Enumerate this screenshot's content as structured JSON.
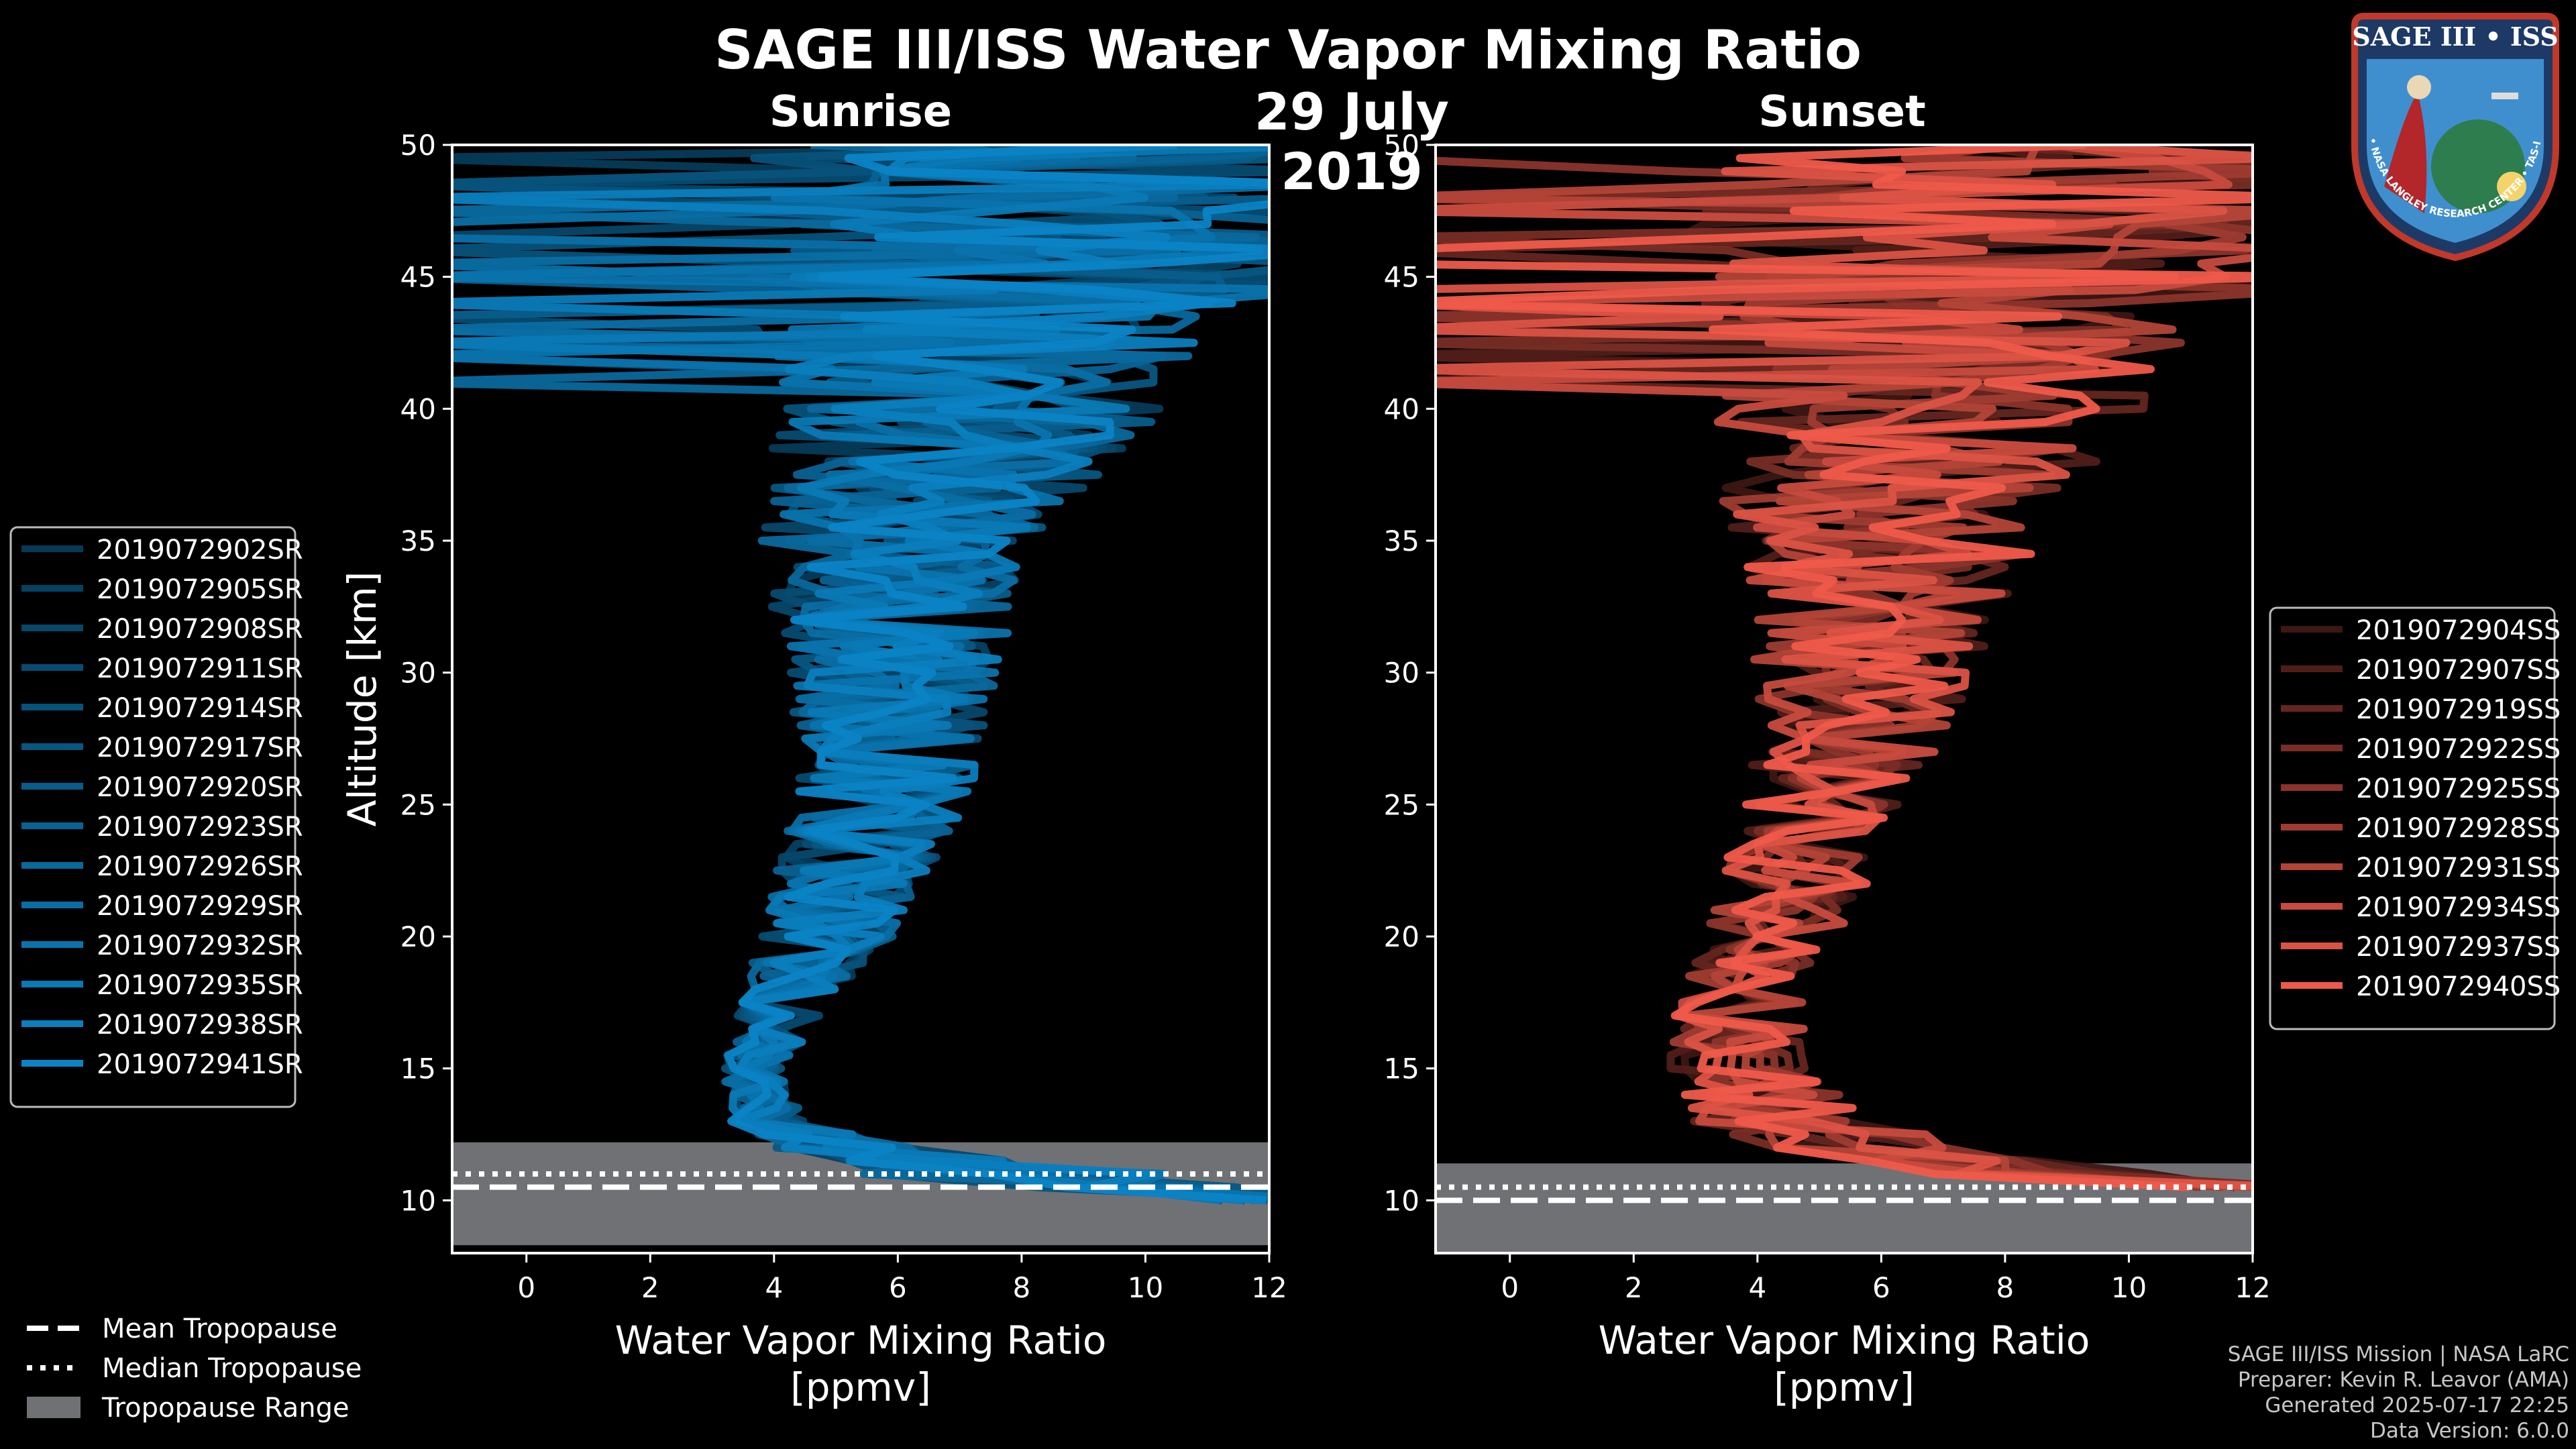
{
  "title": "SAGE III/ISS Water Vapor Mixing Ratio",
  "date": "29 July 2019",
  "colors": {
    "background": "#000000",
    "sunrise": "#0b84c6",
    "sunset": "#ef5a4a",
    "tropopause_fill": "#6f7175"
  },
  "chart_data": [
    {
      "type": "line",
      "panel": "Sunrise",
      "title": "Sunrise",
      "xlabel": "Water Vapor Mixing Ratio\n[ppmv]",
      "ylabel": "Altitude [km]",
      "xlim": [
        -1.2,
        12
      ],
      "ylim": [
        8,
        50
      ],
      "xticks": [
        0,
        2,
        4,
        6,
        8,
        10,
        12
      ],
      "yticks": [
        10,
        15,
        20,
        25,
        30,
        35,
        40,
        45,
        50
      ],
      "legend_location": "left",
      "series": [
        {
          "name": "2019072902SR"
        },
        {
          "name": "2019072905SR"
        },
        {
          "name": "2019072908SR"
        },
        {
          "name": "2019072911SR"
        },
        {
          "name": "2019072914SR"
        },
        {
          "name": "2019072917SR"
        },
        {
          "name": "2019072920SR"
        },
        {
          "name": "2019072923SR"
        },
        {
          "name": "2019072926SR"
        },
        {
          "name": "2019072929SR"
        },
        {
          "name": "2019072932SR"
        },
        {
          "name": "2019072935SR"
        },
        {
          "name": "2019072938SR"
        },
        {
          "name": "2019072941SR"
        }
      ],
      "profile_shape": {
        "altitude": [
          10,
          11,
          12,
          13,
          15,
          18,
          20,
          25,
          30,
          35,
          40,
          45,
          50
        ],
        "median": [
          12,
          7.5,
          5,
          3.8,
          3.6,
          4.2,
          4.7,
          5.5,
          5.7,
          5.6,
          6.8,
          7,
          8
        ],
        "spread": [
          1,
          2.5,
          1.2,
          0.6,
          0.5,
          0.8,
          1.1,
          1.4,
          1.7,
          2.2,
          3.2,
          4,
          5
        ]
      },
      "tropopause": {
        "mean": 10.5,
        "median": 11.0,
        "range": [
          8.3,
          12.2
        ]
      }
    },
    {
      "type": "line",
      "panel": "Sunset",
      "title": "Sunset",
      "xlabel": "Water Vapor Mixing Ratio\n[ppmv]",
      "ylabel": "Altitude [km]",
      "xlim": [
        -1.2,
        12
      ],
      "ylim": [
        8,
        50
      ],
      "xticks": [
        0,
        2,
        4,
        6,
        8,
        10,
        12
      ],
      "yticks": [
        10,
        15,
        20,
        25,
        30,
        35,
        40,
        45,
        50
      ],
      "legend_location": "right",
      "series": [
        {
          "name": "2019072904SS"
        },
        {
          "name": "2019072907SS"
        },
        {
          "name": "2019072919SS"
        },
        {
          "name": "2019072922SS"
        },
        {
          "name": "2019072925SS"
        },
        {
          "name": "2019072928SS"
        },
        {
          "name": "2019072931SS"
        },
        {
          "name": "2019072934SS"
        },
        {
          "name": "2019072937SS"
        },
        {
          "name": "2019072940SS"
        }
      ],
      "profile_shape": {
        "altitude": [
          10.5,
          11,
          12,
          13,
          15,
          18,
          20,
          25,
          30,
          35,
          40,
          45,
          50
        ],
        "median": [
          12,
          9,
          6,
          4.5,
          3.9,
          3.8,
          4.3,
          5.3,
          6,
          6.3,
          7.2,
          7.8,
          8.5
        ],
        "spread": [
          1,
          2,
          2,
          1.5,
          1.2,
          1,
          1.1,
          1.4,
          1.8,
          2.5,
          3.5,
          4.5,
          5.5
        ]
      },
      "tropopause": {
        "mean": 10.0,
        "median": 10.5,
        "range": [
          8.0,
          11.4
        ]
      }
    }
  ],
  "shared_legend": [
    {
      "label": "Mean Tropopause",
      "style": "dashed"
    },
    {
      "label": "Median Tropopause",
      "style": "dotted"
    },
    {
      "label": "Tropopause Range",
      "style": "fill"
    }
  ],
  "footer": {
    "line1": "SAGE III/ISS Mission | NASA LaRC",
    "line2": "Preparer: Kevin R. Leavor (AMA)",
    "line3": "Generated 2025-07-17 22:25",
    "line4": "Data Version: 6.0.0"
  },
  "badge": {
    "top_text": "SAGE III • ISS",
    "ring_text": "BALL • NASA LANGLEY RESEARCH CENTER • TAS-I • ESA"
  }
}
